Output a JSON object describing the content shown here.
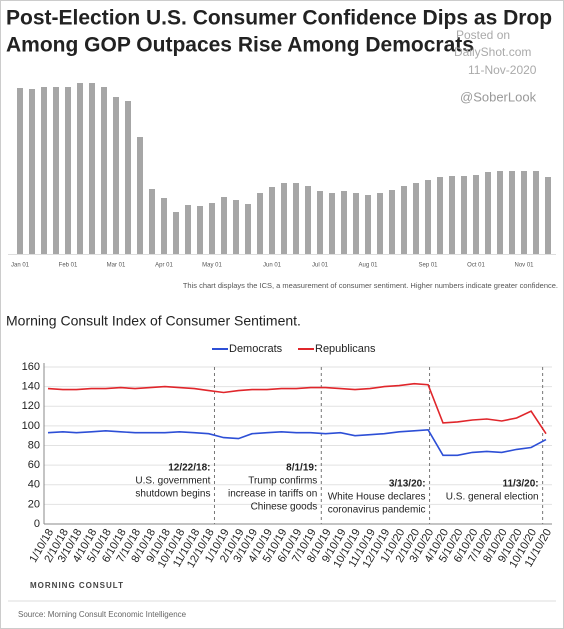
{
  "title": [
    "Post-Election U.S. Consumer Confidence Dips as Drop",
    "Among GOP Outpaces Rise Among Democrats"
  ],
  "watermark": [
    "Posted on",
    "DailyShot.com",
    "11-Nov-2020",
    "@SoberLook"
  ],
  "logo": "MORNING CONSULT",
  "source": "Source: Morning Consult Economic Intelligence",
  "chart_data": [
    {
      "type": "bar",
      "note": "This chart displays the ICS, a measurement of consumer sentiment. Higher numbers indicate greater confidence.",
      "color": "#a6a6a6",
      "ylim": [
        0,
        180
      ],
      "categories": [
        "Jan 01",
        null,
        null,
        null,
        "Feb 01",
        null,
        null,
        null,
        "Mar 01",
        null,
        null,
        null,
        "Apr 01",
        null,
        null,
        null,
        "May 01",
        null,
        null,
        null,
        null,
        "Jun 01",
        null,
        null,
        null,
        "Jul 01",
        null,
        null,
        null,
        "Aug 01",
        null,
        null,
        null,
        null,
        "Sep 01",
        null,
        null,
        null,
        "Oct 01",
        null,
        null,
        null,
        "Nov 01",
        null,
        null
      ],
      "values": [
        166,
        165,
        167,
        167,
        167,
        171,
        171,
        167,
        157,
        153,
        117,
        65,
        56,
        42,
        49,
        48,
        51,
        57,
        54,
        50,
        61,
        67,
        71,
        71,
        68,
        63,
        61,
        63,
        61,
        59,
        61,
        64,
        68,
        71,
        74,
        77,
        78,
        78,
        79,
        82,
        83,
        83,
        83,
        83,
        77
      ]
    },
    {
      "type": "line",
      "title": "Morning Consult Index of Consumer Sentiment.",
      "ylim": [
        0,
        160
      ],
      "yticks": [
        0,
        20,
        40,
        60,
        80,
        100,
        120,
        140,
        160
      ],
      "grid": true,
      "legend": "top",
      "categories": [
        "1/10/18",
        "2/10/18",
        "3/10/18",
        "4/10/18",
        "5/10/18",
        "6/10/18",
        "7/10/18",
        "8/10/18",
        "9/10/18",
        "10/10/18",
        "11/10/18",
        "12/10/18",
        "1/10/19",
        "2/10/19",
        "3/10/19",
        "4/10/19",
        "5/10/19",
        "6/10/19",
        "7/10/19",
        "8/10/19",
        "9/10/19",
        "10/10/19",
        "11/10/19",
        "12/10/19",
        "1/10/20",
        "2/10/20",
        "3/10/20",
        "4/10/20",
        "5/10/20",
        "6/10/20",
        "7/10/20",
        "8/10/20",
        "9/10/20",
        "10/10/20",
        "11/10/20"
      ],
      "series": [
        {
          "name": "Democrats",
          "color": "#2d4fd6",
          "values": [
            93,
            94,
            93,
            94,
            95,
            94,
            93,
            93,
            93,
            94,
            93,
            92,
            88,
            87,
            92,
            93,
            94,
            93,
            93,
            92,
            93,
            90,
            91,
            92,
            94,
            95,
            96,
            70,
            70,
            73,
            74,
            73,
            76,
            78,
            86
          ]
        },
        {
          "name": "Republicans",
          "color": "#e0262b",
          "values": [
            138,
            137,
            137,
            138,
            138,
            139,
            138,
            139,
            140,
            139,
            138,
            136,
            134,
            136,
            137,
            137,
            138,
            138,
            139,
            139,
            138,
            137,
            138,
            140,
            141,
            143,
            142,
            103,
            104,
            106,
            107,
            105,
            108,
            115,
            92
          ]
        }
      ],
      "annotations": [
        {
          "date": "12/22/18:",
          "text": [
            "U.S. government",
            "shutdown begins"
          ]
        },
        {
          "date": "8/1/19:",
          "text": [
            "Trump confirms",
            "increase in tariffs on",
            "Chinese goods"
          ]
        },
        {
          "date": "3/13/20:",
          "text": [
            "White House declares",
            "coronavirus pandemic"
          ]
        },
        {
          "date": "11/3/20:",
          "text": [
            "U.S. general election"
          ]
        }
      ]
    }
  ]
}
